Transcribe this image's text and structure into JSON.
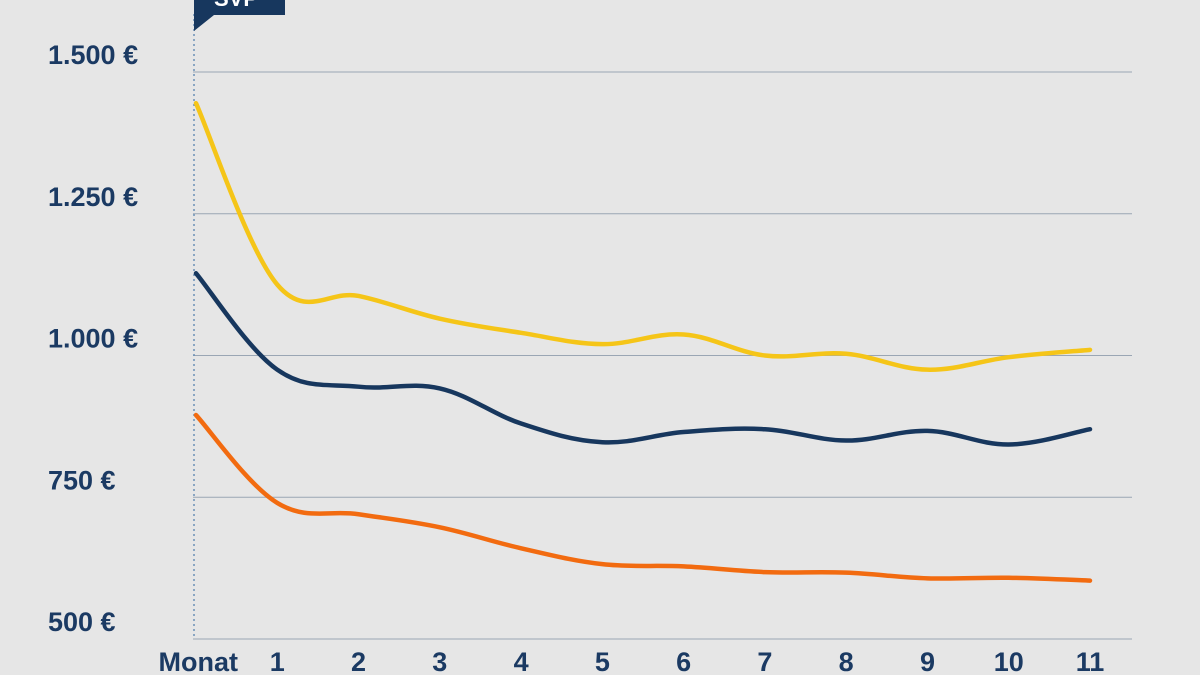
{
  "chart_data": {
    "type": "line",
    "title": "",
    "xlabel": "",
    "ylabel": "",
    "x_tick_labels": [
      "Monat",
      "1",
      "2",
      "3",
      "4",
      "5",
      "6",
      "7",
      "8",
      "9",
      "10",
      "11"
    ],
    "x": [
      0,
      1,
      2,
      3,
      4,
      5,
      6,
      7,
      8,
      9,
      10,
      11
    ],
    "y_tick_labels": [
      "1.500 €",
      "1.250 €",
      "1.000 €",
      "750 €",
      "500 €"
    ],
    "y_ticks": [
      1500,
      1250,
      1000,
      750,
      500
    ],
    "ylim": [
      500,
      1500
    ],
    "xlim": [
      0,
      11
    ],
    "grid": "horizontal",
    "marker": {
      "label": "SVP",
      "at_x": 0
    },
    "series": [
      {
        "color": "#f5c518",
        "values": [
          1445,
          1125,
          1105,
          1065,
          1040,
          1020,
          1037,
          1000,
          1003,
          975,
          997,
          1010
        ]
      },
      {
        "color": "#17375e",
        "values": [
          1145,
          975,
          945,
          942,
          880,
          847,
          865,
          870,
          850,
          867,
          843,
          870
        ]
      },
      {
        "color": "#f26b10",
        "values": [
          895,
          740,
          720,
          697,
          660,
          632,
          628,
          618,
          617,
          607,
          608,
          603
        ]
      }
    ]
  }
}
